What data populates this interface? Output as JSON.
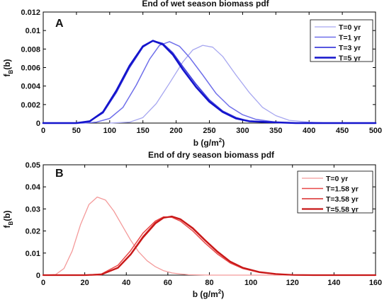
{
  "chart_data": [
    {
      "type": "line",
      "panel": "A",
      "title": "End of wet season biomass pdf",
      "xlabel": "b (g/m",
      "xlabel_sup": "2",
      "xlabel_end": ")",
      "ylabel_main": "f",
      "ylabel_sub": "B",
      "ylabel_end": "(b)",
      "xlim": [
        0,
        500
      ],
      "ylim": [
        0,
        0.012
      ],
      "xticks": [
        "0",
        "50",
        "100",
        "150",
        "200",
        "250",
        "300",
        "350",
        "400",
        "450",
        "500"
      ],
      "yticks": [
        "0",
        "0.002",
        "0.004",
        "0.006",
        "0.008",
        "0.01",
        "0.012"
      ],
      "legend_position": "top-right",
      "series": [
        {
          "name": "T=0 yr",
          "color": "#a7a7f0",
          "width": 1.3,
          "x": [
            100,
            130,
            150,
            170,
            190,
            210,
            225,
            240,
            255,
            270,
            290,
            310,
            330,
            350,
            370,
            400,
            430,
            460,
            500
          ],
          "y": [
            0,
            0.0001,
            0.0006,
            0.0021,
            0.0043,
            0.0066,
            0.0079,
            0.0084,
            0.0082,
            0.0072,
            0.0052,
            0.0033,
            0.0017,
            0.0008,
            0.0003,
            0.0001,
            0,
            0,
            0
          ]
        },
        {
          "name": "T=1 yr",
          "color": "#6f6fea",
          "width": 1.5,
          "x": [
            0,
            60,
            80,
            100,
            120,
            140,
            160,
            175,
            190,
            205,
            220,
            240,
            260,
            280,
            300,
            320,
            350,
            380,
            420,
            500
          ],
          "y": [
            0,
            0,
            0.0001,
            0.0005,
            0.0017,
            0.0041,
            0.0069,
            0.0084,
            0.0088,
            0.0083,
            0.0071,
            0.0052,
            0.0032,
            0.0018,
            0.0009,
            0.0004,
            0.0001,
            0,
            0,
            0
          ]
        },
        {
          "name": "T=3 yr",
          "color": "#3f3fdc",
          "width": 1.7,
          "x": [
            0,
            50,
            70,
            90,
            110,
            130,
            150,
            165,
            180,
            195,
            210,
            230,
            250,
            270,
            290,
            310,
            340,
            380,
            420,
            500
          ],
          "y": [
            0,
            0,
            0.0002,
            0.0011,
            0.0033,
            0.006,
            0.0082,
            0.0089,
            0.0086,
            0.0076,
            0.0061,
            0.0042,
            0.0025,
            0.0013,
            0.0006,
            0.0002,
            0.0001,
            0,
            0,
            0
          ]
        },
        {
          "name": "T=5 yr",
          "color": "#1414cc",
          "width": 2.6,
          "x": [
            0,
            50,
            70,
            90,
            110,
            130,
            150,
            165,
            180,
            195,
            210,
            230,
            250,
            270,
            290,
            310,
            340,
            380,
            420,
            500
          ],
          "y": [
            0,
            0,
            0.0002,
            0.0012,
            0.0035,
            0.0062,
            0.0083,
            0.0089,
            0.0085,
            0.0074,
            0.0058,
            0.0039,
            0.0023,
            0.0012,
            0.0005,
            0.0002,
            0.0001,
            0,
            0,
            0
          ]
        }
      ]
    },
    {
      "type": "line",
      "panel": "B",
      "title": "End of dry season biomass pdf",
      "xlabel": "b (g/m",
      "xlabel_sup": "2",
      "xlabel_end": ")",
      "ylabel_main": "f",
      "ylabel_sub": "B",
      "ylabel_end": "(b)",
      "xlim": [
        0,
        160
      ],
      "ylim": [
        0,
        0.05
      ],
      "xticks": [
        "0",
        "20",
        "40",
        "60",
        "80",
        "100",
        "120",
        "140",
        "160"
      ],
      "yticks": [
        "0",
        "0.01",
        "0.02",
        "0.03",
        "0.04",
        "0.05"
      ],
      "legend_position": "top-right",
      "series": [
        {
          "name": "T=0 yr",
          "color": "#f49a9a",
          "width": 1.3,
          "x": [
            0,
            6,
            10,
            14,
            18,
            22,
            26,
            30,
            34,
            38,
            42,
            46,
            50,
            54,
            58,
            62,
            66,
            70,
            80,
            160
          ],
          "y": [
            0,
            0.0003,
            0.003,
            0.011,
            0.023,
            0.032,
            0.0354,
            0.034,
            0.029,
            0.0225,
            0.016,
            0.0105,
            0.0065,
            0.0038,
            0.002,
            0.001,
            0.0005,
            0.0002,
            0,
            0
          ]
        },
        {
          "name": "T=1.58 yr",
          "color": "#e84848",
          "width": 1.5,
          "x": [
            0,
            20,
            28,
            36,
            42,
            48,
            54,
            58,
            62,
            66,
            72,
            78,
            84,
            90,
            96,
            104,
            112,
            120,
            130,
            160
          ],
          "y": [
            0,
            0,
            0.0005,
            0.0045,
            0.011,
            0.019,
            0.0245,
            0.0264,
            0.0262,
            0.0245,
            0.02,
            0.0145,
            0.0095,
            0.0055,
            0.003,
            0.0012,
            0.0004,
            0.0001,
            0,
            0
          ]
        },
        {
          "name": "T=3.58 yr",
          "color": "#d82828",
          "width": 1.6,
          "x": [
            0,
            20,
            28,
            36,
            42,
            48,
            54,
            58,
            62,
            66,
            72,
            78,
            84,
            90,
            96,
            104,
            112,
            120,
            130,
            160
          ],
          "y": [
            0,
            0,
            0.0003,
            0.0035,
            0.0095,
            0.0175,
            0.0238,
            0.0262,
            0.0265,
            0.0252,
            0.021,
            0.0155,
            0.0103,
            0.006,
            0.0033,
            0.0013,
            0.0005,
            0.0001,
            0,
            0
          ]
        },
        {
          "name": "T=5.58 yr",
          "color": "#c81818",
          "width": 2.2,
          "x": [
            0,
            20,
            28,
            36,
            42,
            48,
            54,
            58,
            62,
            66,
            72,
            78,
            84,
            90,
            96,
            104,
            112,
            120,
            130,
            160
          ],
          "y": [
            0,
            0,
            0.0003,
            0.0033,
            0.0092,
            0.017,
            0.0234,
            0.026,
            0.0266,
            0.0254,
            0.0213,
            0.0158,
            0.0106,
            0.0062,
            0.0034,
            0.0014,
            0.0005,
            0.0001,
            0,
            0
          ]
        }
      ]
    }
  ]
}
